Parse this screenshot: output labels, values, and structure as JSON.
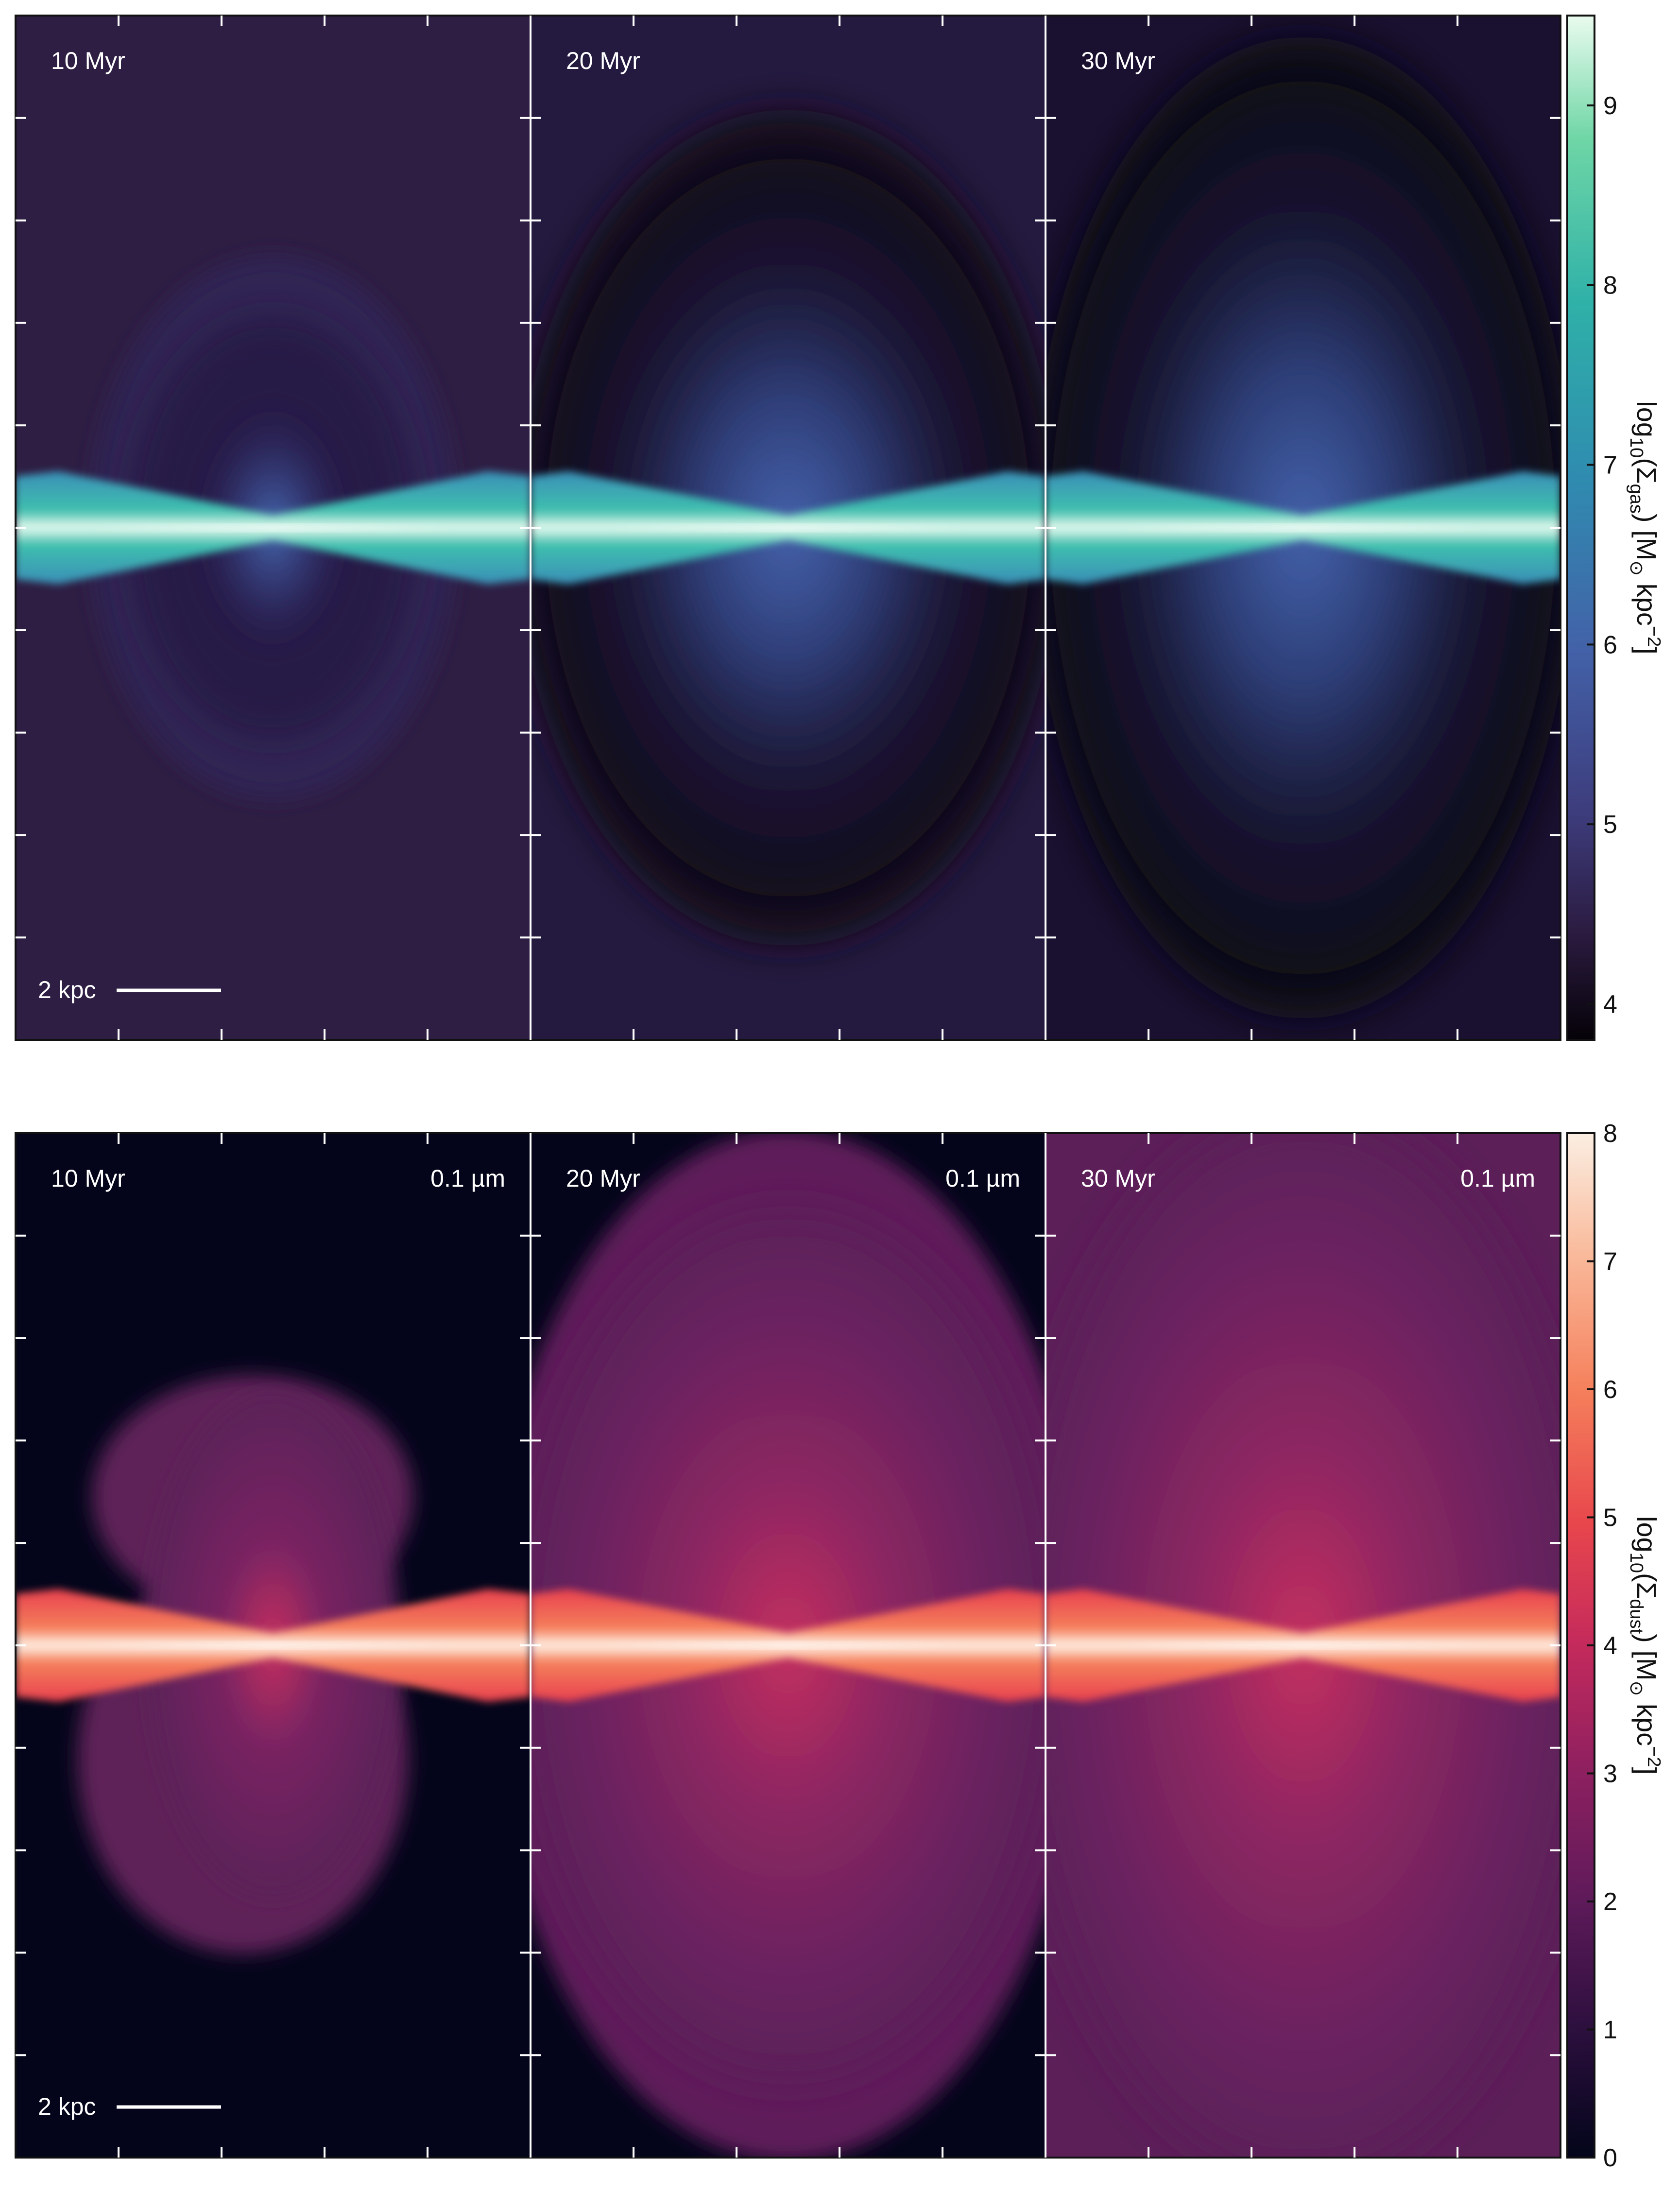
{
  "top_row": {
    "panels": [
      {
        "time_label": "10 Myr",
        "scale_label": "2 kpc"
      },
      {
        "time_label": "20 Myr"
      },
      {
        "time_label": "30 Myr"
      }
    ],
    "colorbar": {
      "label_main": "log",
      "label_sub1": "10",
      "label_sigma": "(Σ",
      "label_sub2": "gas",
      "label_units": ") [M",
      "label_sun": "⊙",
      "label_kpc": " kpc",
      "label_exp": "−2",
      "label_close": "]",
      "ticks": [
        "4",
        "5",
        "6",
        "7",
        "8",
        "9"
      ],
      "range": [
        3.8,
        9.5
      ],
      "colors": [
        "#050208",
        "#2a1a3e",
        "#3d3c7c",
        "#4361a8",
        "#2f8cb0",
        "#2fb1a8",
        "#6fd6a6",
        "#e9fbee"
      ]
    },
    "colors": {
      "background_10": "#2e1e43",
      "background_dark": "#170e26",
      "disk": "#3fc0ae",
      "disk_core": "#e8fbf0",
      "outflow": "#3f5aa0"
    }
  },
  "bottom_row": {
    "panels": [
      {
        "time_label": "10 Myr",
        "size_label": "0.1 µm",
        "scale_label": "2 kpc"
      },
      {
        "time_label": "20 Myr",
        "size_label": "0.1 µm"
      },
      {
        "time_label": "30 Myr",
        "size_label": "0.1 µm"
      }
    ],
    "colorbar": {
      "label_main": "log",
      "label_sub1": "10",
      "label_sigma": "(Σ",
      "label_sub2": "dust",
      "label_units": ") [M",
      "label_sun": "⊙",
      "label_kpc": " kpc",
      "label_exp": "−2",
      "label_close": "]",
      "ticks": [
        "0",
        "1",
        "2",
        "3",
        "4",
        "5",
        "6",
        "7",
        "8"
      ],
      "range": [
        0,
        8
      ],
      "colors": [
        "#03051a",
        "#2a0f3c",
        "#5e1a5a",
        "#8f2060",
        "#c42a5c",
        "#e8474c",
        "#f5805c",
        "#f9b99a",
        "#fbeee2"
      ]
    },
    "colors": {
      "background": "#04051b",
      "halo": "#6a2560",
      "disk": "#f25d4e",
      "disk_core": "#fff2e6",
      "outflow": "#b32860"
    }
  }
}
